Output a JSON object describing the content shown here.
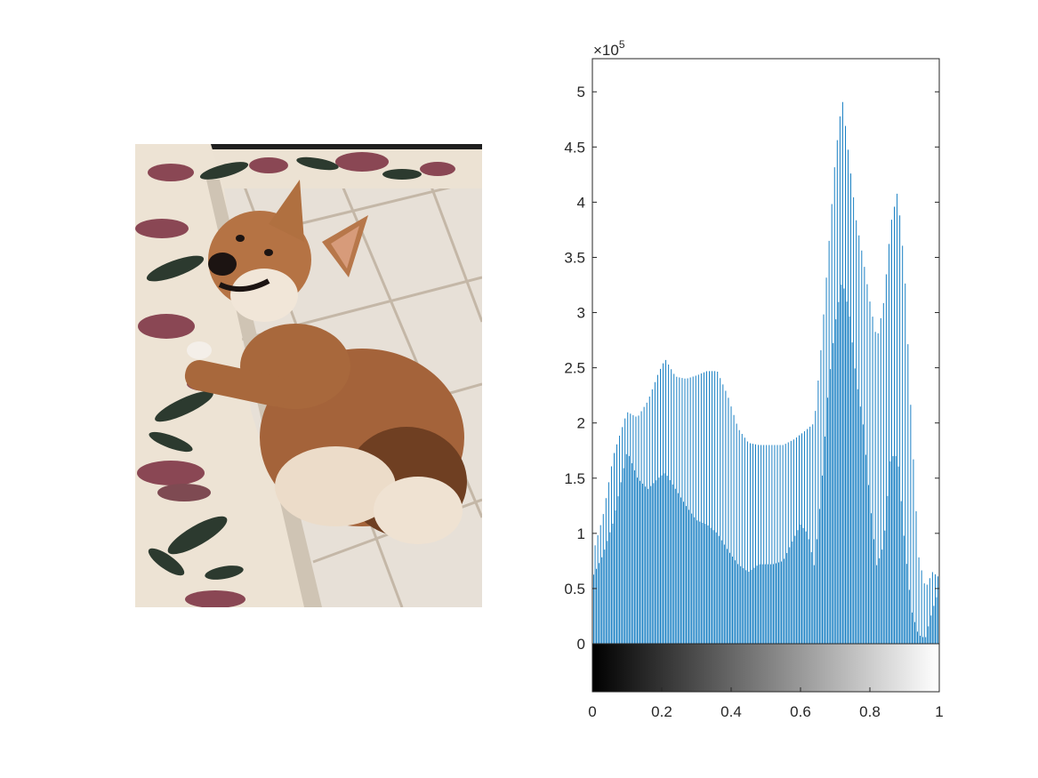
{
  "image": {
    "subject": "corgi-photo",
    "colors": {
      "floor": "#e6dfd6",
      "grout": "#b9ab99",
      "fur": "#a8673a",
      "fur_dark": "#6e3f1e",
      "fur_light": "#efe4d8",
      "rug": "#eee4d6",
      "rug_flower": "#8a4754",
      "rug_leaf": "#2c3a2f"
    }
  },
  "chart_data": {
    "type": "bar",
    "title": "",
    "xlabel": "",
    "ylabel": "",
    "xlim": [
      0,
      1
    ],
    "ylim": [
      0,
      530000
    ],
    "y_exponent_label": {
      "base": "×10",
      "exp": "5"
    },
    "xticks": [
      0,
      0.2,
      0.4,
      0.6,
      0.8,
      1
    ],
    "xtick_labels": [
      "0",
      "0.2",
      "0.4",
      "0.6",
      "0.8",
      "1"
    ],
    "yticks": [
      0,
      50000,
      100000,
      150000,
      200000,
      250000,
      300000,
      350000,
      400000,
      450000,
      500000
    ],
    "ytick_labels": [
      "0",
      "0.5",
      "1",
      "1.5",
      "2",
      "2.5",
      "3",
      "3.5",
      "4",
      "4.5",
      "5"
    ],
    "bar_color": "#0072bd",
    "colorbar": {
      "from": "#000000",
      "to": "#ffffff"
    },
    "bins": 256,
    "series": [
      {
        "name": "",
        "upper_envelope": [
          [
            0.0,
            80000
          ],
          [
            0.03,
            115000
          ],
          [
            0.06,
            170000
          ],
          [
            0.1,
            210000
          ],
          [
            0.13,
            205000
          ],
          [
            0.16,
            220000
          ],
          [
            0.19,
            245000
          ],
          [
            0.21,
            258000
          ],
          [
            0.24,
            242000
          ],
          [
            0.27,
            240000
          ],
          [
            0.3,
            243000
          ],
          [
            0.33,
            247000
          ],
          [
            0.36,
            247000
          ],
          [
            0.39,
            225000
          ],
          [
            0.42,
            195000
          ],
          [
            0.45,
            182000
          ],
          [
            0.48,
            180000
          ],
          [
            0.52,
            180000
          ],
          [
            0.55,
            180000
          ],
          [
            0.58,
            185000
          ],
          [
            0.61,
            192000
          ],
          [
            0.64,
            200000
          ],
          [
            0.66,
            270000
          ],
          [
            0.68,
            355000
          ],
          [
            0.7,
            440000
          ],
          [
            0.72,
            495000
          ],
          [
            0.74,
            440000
          ],
          [
            0.76,
            385000
          ],
          [
            0.78,
            350000
          ],
          [
            0.8,
            310000
          ],
          [
            0.82,
            275000
          ],
          [
            0.84,
            310000
          ],
          [
            0.86,
            380000
          ],
          [
            0.88,
            410000
          ],
          [
            0.9,
            340000
          ],
          [
            0.92,
            200000
          ],
          [
            0.94,
            80000
          ],
          [
            0.96,
            50000
          ],
          [
            0.98,
            65000
          ],
          [
            1.0,
            60000
          ]
        ],
        "lower_envelope": [
          [
            0.0,
            60000
          ],
          [
            0.03,
            80000
          ],
          [
            0.06,
            110000
          ],
          [
            0.1,
            175000
          ],
          [
            0.13,
            150000
          ],
          [
            0.16,
            140000
          ],
          [
            0.19,
            150000
          ],
          [
            0.21,
            155000
          ],
          [
            0.24,
            140000
          ],
          [
            0.27,
            125000
          ],
          [
            0.3,
            112000
          ],
          [
            0.33,
            108000
          ],
          [
            0.36,
            100000
          ],
          [
            0.39,
            85000
          ],
          [
            0.42,
            72000
          ],
          [
            0.45,
            65000
          ],
          [
            0.48,
            72000
          ],
          [
            0.52,
            72000
          ],
          [
            0.55,
            75000
          ],
          [
            0.58,
            95000
          ],
          [
            0.6,
            108000
          ],
          [
            0.62,
            100000
          ],
          [
            0.64,
            70000
          ],
          [
            0.66,
            140000
          ],
          [
            0.68,
            230000
          ],
          [
            0.7,
            290000
          ],
          [
            0.72,
            330000
          ],
          [
            0.74,
            300000
          ],
          [
            0.76,
            240000
          ],
          [
            0.78,
            200000
          ],
          [
            0.8,
            130000
          ],
          [
            0.82,
            70000
          ],
          [
            0.84,
            90000
          ],
          [
            0.86,
            170000
          ],
          [
            0.88,
            170000
          ],
          [
            0.9,
            90000
          ],
          [
            0.92,
            30000
          ],
          [
            0.94,
            8000
          ],
          [
            0.96,
            5000
          ],
          [
            0.98,
            30000
          ],
          [
            1.0,
            50000
          ]
        ]
      }
    ]
  }
}
